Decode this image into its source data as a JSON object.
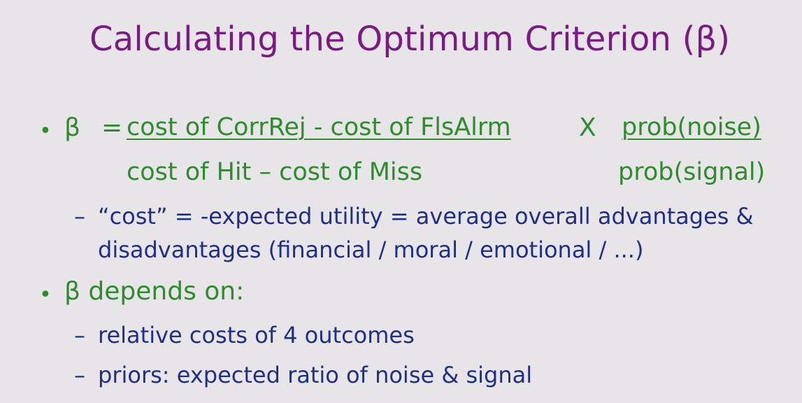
{
  "slide": {
    "title": "Calculating the Optimum Criterion (β)",
    "bullet_glyph": "•",
    "dash_glyph": "–",
    "formula": {
      "beta": "β",
      "equals": "=",
      "numerator_left": "cost of CorrRej - cost of FlsAlrm",
      "times": "X",
      "numerator_right": "prob(noise)",
      "denominator_left": "cost of Hit – cost of Miss",
      "denominator_right": "prob(signal)"
    },
    "sub1_line1": "“cost” = -expected utility = average overall advantages &",
    "sub1_line2": "disadvantages (financial / moral / emotional / ...)",
    "bullet2": "β depends on:",
    "sub2_items": [
      "relative costs of 4 outcomes",
      "priors: expected ratio of noise & signal"
    ]
  },
  "colors": {
    "background": "#e8e5e8",
    "title": "#7a1a82",
    "green": "#2e8b2e",
    "blue": "#1f2f85"
  }
}
